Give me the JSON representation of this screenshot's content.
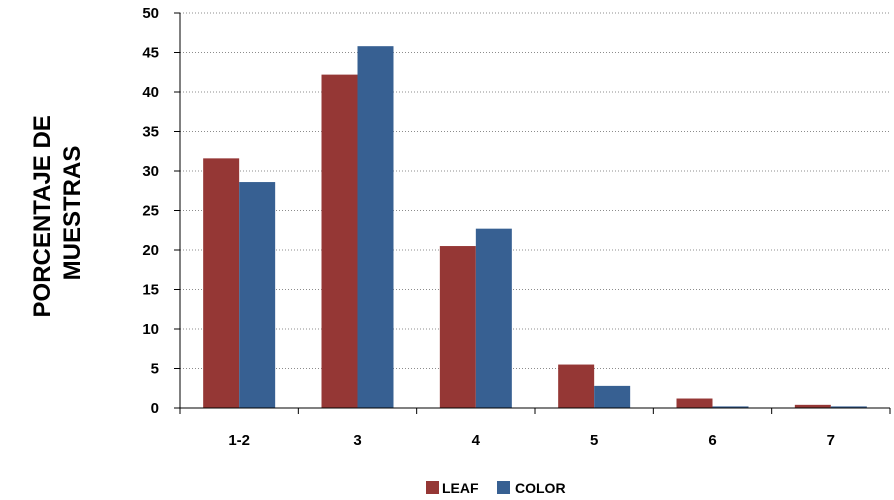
{
  "chart_data": {
    "type": "bar",
    "title": "",
    "xlabel": "",
    "ylabel_lines": [
      "PORCENTAJE DE",
      "MUESTRAS"
    ],
    "categories": [
      "1-2",
      "3",
      "4",
      "5",
      "6",
      "7"
    ],
    "series": [
      {
        "name": "LEAF",
        "color": "#953735",
        "values": [
          31.6,
          42.2,
          20.5,
          5.5,
          1.2,
          0.4
        ]
      },
      {
        "name": "COLOR",
        "color": "#376092",
        "values": [
          28.6,
          45.8,
          22.7,
          2.8,
          0.2,
          0.2
        ]
      }
    ],
    "ylim": [
      0,
      50
    ],
    "yticks": [
      0,
      5,
      10,
      15,
      20,
      25,
      30,
      35,
      40,
      45,
      50
    ],
    "grid": "horizontal dotted",
    "legend_position": "bottom-center"
  }
}
